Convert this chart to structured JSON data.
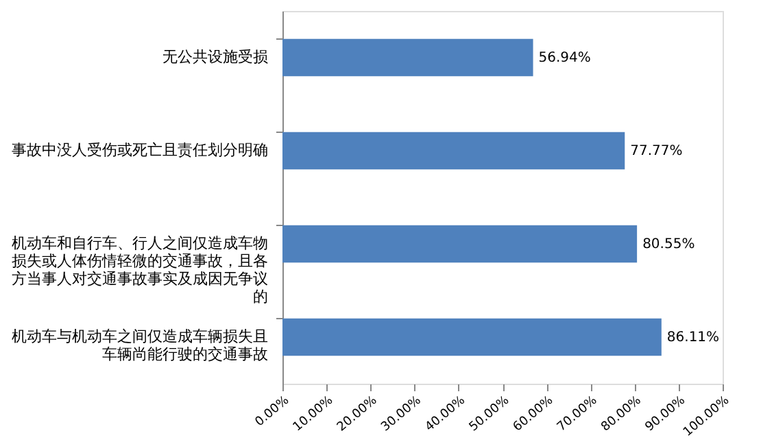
{
  "chart_data": {
    "type": "bar",
    "orientation": "horizontal",
    "categories": [
      "无公共设施受损",
      "事故中没人受伤或死亡且责任划分明确",
      "机动车和自行车、行人之间仅造成车物损失或人体伤情轻微的交通事故，且各方当事人对交通事故事实及成因无争议的",
      "机动车与机动车之间仅造成车辆损失且车辆尚能行驶的交通事故"
    ],
    "values": [
      56.94,
      77.77,
      80.55,
      86.11
    ],
    "value_labels": [
      "56.94%",
      "77.77%",
      "80.55%",
      "86.11%"
    ],
    "color": "#4f81bd",
    "xlim": [
      0,
      100
    ],
    "xticks": [
      {
        "value": 0,
        "label": "0.00%"
      },
      {
        "value": 10,
        "label": "10.00%"
      },
      {
        "value": 20,
        "label": "20.00%"
      },
      {
        "value": 30,
        "label": "30.00%"
      },
      {
        "value": 40,
        "label": "40.00%"
      },
      {
        "value": 50,
        "label": "50.00%"
      },
      {
        "value": 60,
        "label": "60.00%"
      },
      {
        "value": 70,
        "label": "70.00%"
      },
      {
        "value": 80,
        "label": "80.00%"
      },
      {
        "value": 90,
        "label": "90.00%"
      },
      {
        "value": 100,
        "label": "100.00%"
      }
    ]
  }
}
